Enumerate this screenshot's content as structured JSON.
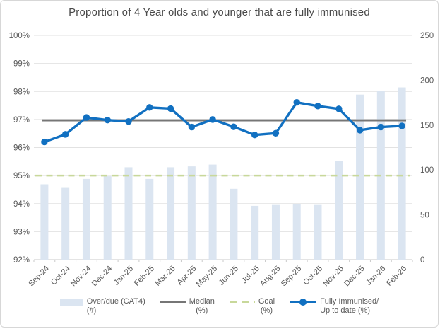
{
  "chart_data": {
    "type": "combo",
    "title": "Proportion of 4 Year olds and younger that are fully immunised",
    "categories": [
      "Sep-24",
      "Oct-24",
      "Nov-24",
      "Dec-24",
      "Jan-25",
      "Feb-25",
      "Mar-25",
      "Apr-25",
      "May-25",
      "Jun-25",
      "Jul-25",
      "Aug-25",
      "Sep-25",
      "Oct-25",
      "Nov-25",
      "Dec-25",
      "Jan-26",
      "Feb-26"
    ],
    "series": [
      {
        "name": "Over/due (CAT4) (#)",
        "type": "bar",
        "axis": "right",
        "color": "#dbe5f1",
        "values": [
          84,
          80,
          90,
          93,
          103,
          90,
          103,
          104,
          106,
          79,
          60,
          61,
          62,
          61,
          110,
          184,
          188,
          192
        ]
      },
      {
        "name": "Median (%)",
        "type": "line",
        "axis": "left",
        "color": "#767676",
        "value": 96.97
      },
      {
        "name": "Goal (%)",
        "type": "dashed-line",
        "axis": "left",
        "color": "#c8d89a",
        "value": 95
      },
      {
        "name": "Fully Immunised/ Up to date (%)",
        "type": "line-markers",
        "axis": "left",
        "color": "#1170c1",
        "values": [
          96.2,
          96.47,
          97.07,
          96.98,
          96.93,
          97.43,
          97.39,
          96.73,
          97.0,
          96.74,
          96.45,
          96.51,
          97.61,
          97.48,
          97.38,
          96.62,
          96.73,
          96.77
        ]
      }
    ],
    "left_axis": {
      "min": 92,
      "max": 100,
      "step": 1,
      "format": "percent",
      "tick_labels": [
        "100%",
        "99%",
        "98%",
        "97%",
        "96%",
        "95%",
        "94%",
        "93%",
        "92%"
      ]
    },
    "right_axis": {
      "min": 0,
      "max": 250,
      "step": 50,
      "tick_labels": [
        "250",
        "200",
        "150",
        "100",
        "50",
        "0"
      ]
    },
    "grid": true,
    "legend_position": "bottom"
  },
  "legend": {
    "items": [
      {
        "line1": "Over/due (CAT4)",
        "line2": "(#)"
      },
      {
        "line1": "Median",
        "line2": "(%)"
      },
      {
        "line1": "Goal",
        "line2": "(%)"
      },
      {
        "line1": "Fully Immunised/",
        "line2": "Up to date (%)"
      }
    ]
  },
  "colors": {
    "gridline": "#e2e2e2",
    "axis_line": "#c9c9c9",
    "axis_text": "#595959",
    "title_text": "#4a4a4a"
  }
}
